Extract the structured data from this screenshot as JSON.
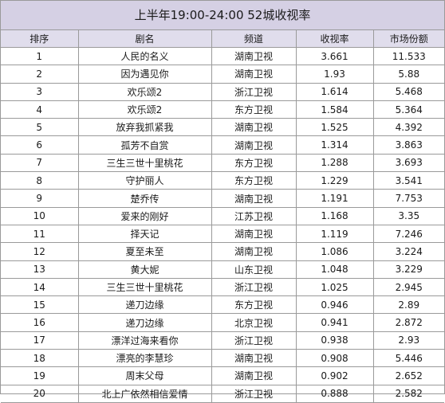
{
  "title": "上半年19:00-24:00 52城收视率",
  "columns": {
    "rank": "排序",
    "name": "剧名",
    "channel": "频道",
    "rating": "收视率",
    "share": "市场份额"
  },
  "rows": [
    {
      "rank": "1",
      "name": "人民的名义",
      "channel": "湖南卫视",
      "rating": "3.661",
      "share": "11.533"
    },
    {
      "rank": "2",
      "name": "因为遇见你",
      "channel": "湖南卫视",
      "rating": "1.93",
      "share": "5.88"
    },
    {
      "rank": "3",
      "name": "欢乐颂2",
      "channel": "浙江卫视",
      "rating": "1.614",
      "share": "5.468"
    },
    {
      "rank": "4",
      "name": "欢乐颂2",
      "channel": "东方卫视",
      "rating": "1.584",
      "share": "5.364"
    },
    {
      "rank": "5",
      "name": "放弃我抓紧我",
      "channel": "湖南卫视",
      "rating": "1.525",
      "share": "4.392"
    },
    {
      "rank": "6",
      "name": "孤芳不自赏",
      "channel": "湖南卫视",
      "rating": "1.314",
      "share": "3.863"
    },
    {
      "rank": "7",
      "name": "三生三世十里桃花",
      "channel": "东方卫视",
      "rating": "1.288",
      "share": "3.693"
    },
    {
      "rank": "8",
      "name": "守护丽人",
      "channel": "东方卫视",
      "rating": "1.229",
      "share": "3.541"
    },
    {
      "rank": "9",
      "name": "楚乔传",
      "channel": "湖南卫视",
      "rating": "1.191",
      "share": "7.753"
    },
    {
      "rank": "10",
      "name": "爱来的刚好",
      "channel": "江苏卫视",
      "rating": "1.168",
      "share": "3.35"
    },
    {
      "rank": "11",
      "name": "择天记",
      "channel": "湖南卫视",
      "rating": "1.119",
      "share": "7.246"
    },
    {
      "rank": "12",
      "name": "夏至未至",
      "channel": "湖南卫视",
      "rating": "1.086",
      "share": "3.224"
    },
    {
      "rank": "13",
      "name": "黄大妮",
      "channel": "山东卫视",
      "rating": "1.048",
      "share": "3.229"
    },
    {
      "rank": "14",
      "name": "三生三世十里桃花",
      "channel": "浙江卫视",
      "rating": "1.025",
      "share": "2.945"
    },
    {
      "rank": "15",
      "name": "递刀边缘",
      "channel": "东方卫视",
      "rating": "0.946",
      "share": "2.89"
    },
    {
      "rank": "16",
      "name": "递刀边缘",
      "channel": "北京卫视",
      "rating": "0.941",
      "share": "2.872"
    },
    {
      "rank": "17",
      "name": "漂洋过海来看你",
      "channel": "浙江卫视",
      "rating": "0.938",
      "share": "2.93"
    },
    {
      "rank": "18",
      "name": "漂亮的李慧珍",
      "channel": "湖南卫视",
      "rating": "0.908",
      "share": "5.446"
    },
    {
      "rank": "19",
      "name": "周末父母",
      "channel": "湖南卫视",
      "rating": "0.902",
      "share": "2.652"
    },
    {
      "rank": "20",
      "name": "北上广依然相信爱情",
      "channel": "浙江卫视",
      "rating": "0.888",
      "share": "2.582"
    }
  ]
}
